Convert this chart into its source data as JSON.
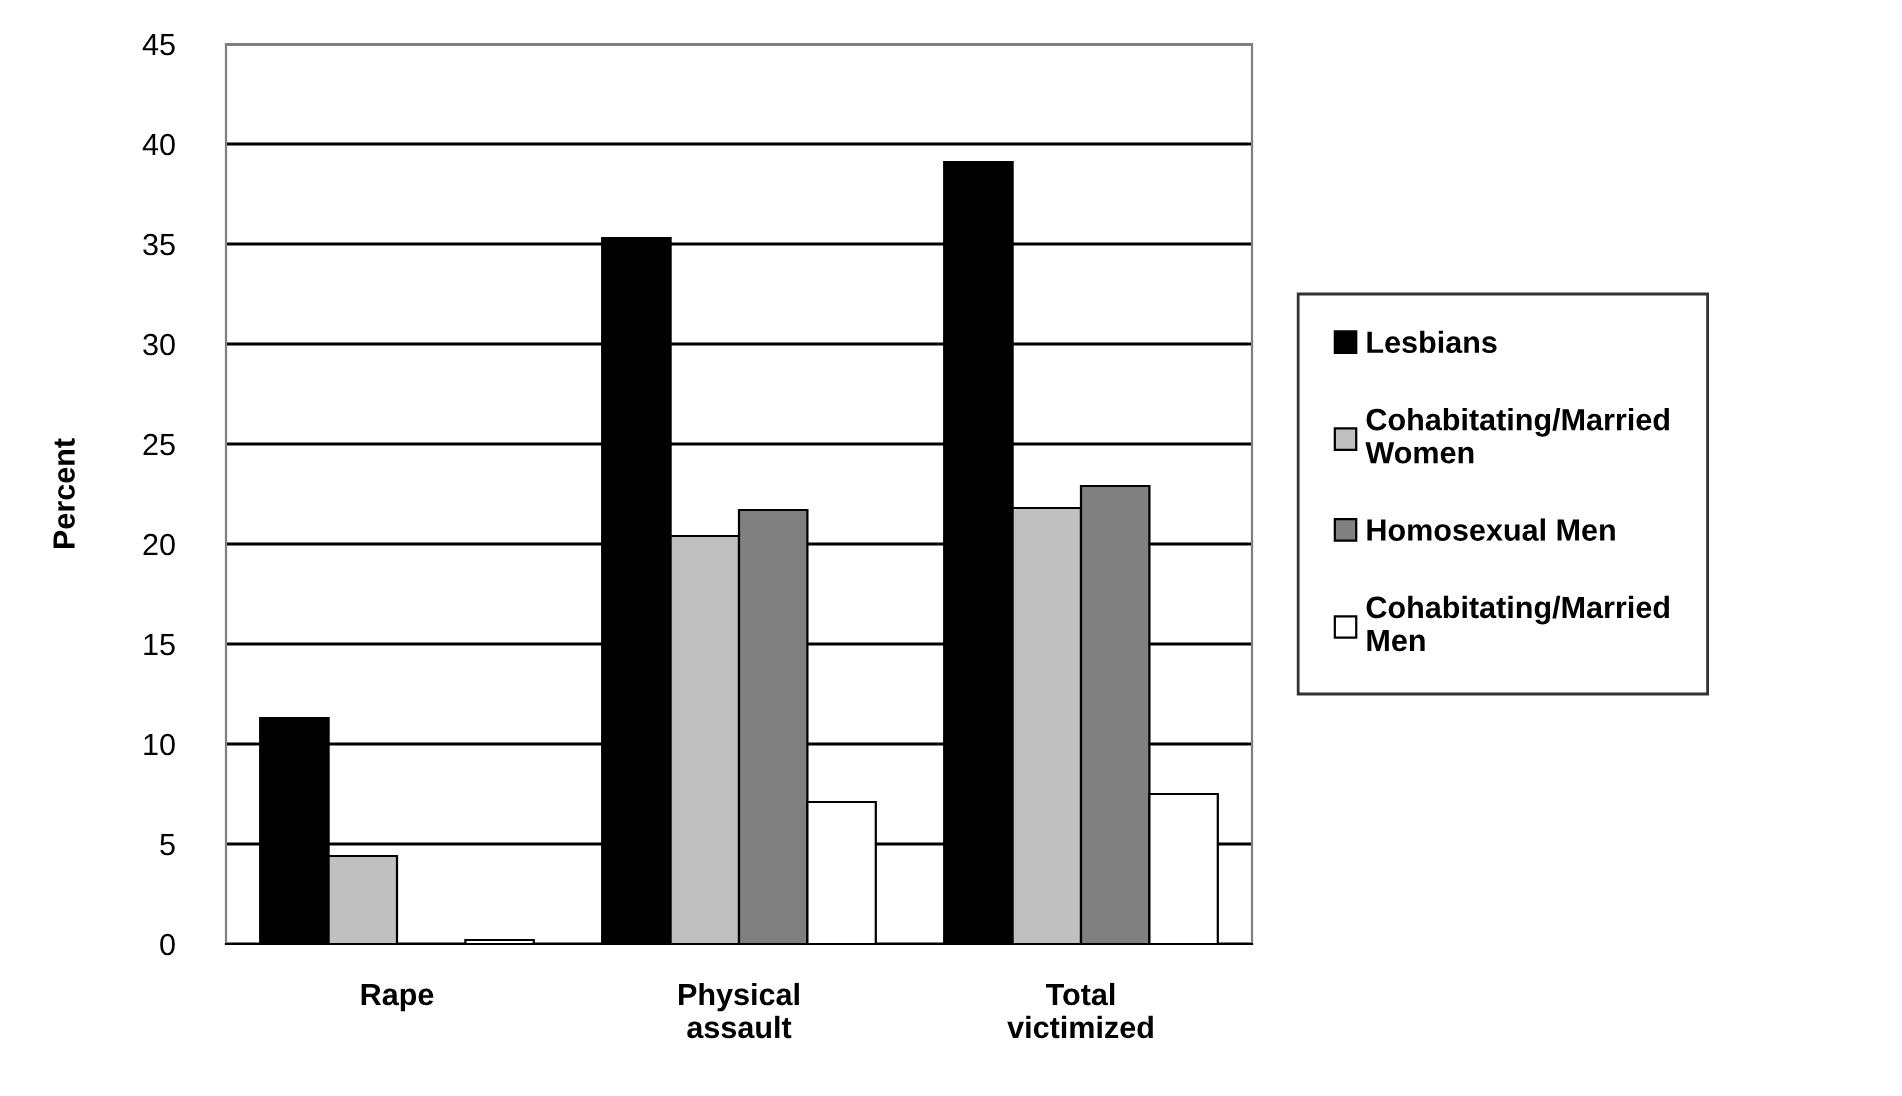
{
  "chart_data": {
    "type": "bar",
    "ylabel": "Percent",
    "categories": [
      "Rape",
      "Physical\nassault",
      "Total\nvictimized"
    ],
    "series": [
      {
        "name": "Lesbians",
        "color": "#000000",
        "values": [
          11.3,
          35.3,
          39.1
        ]
      },
      {
        "name": "Cohabitating/Married\nWomen",
        "color": "#c0c0c0",
        "values": [
          4.4,
          20.4,
          21.8
        ]
      },
      {
        "name": "Homosexual Men",
        "color": "#808080",
        "values": [
          null,
          21.7,
          22.9
        ]
      },
      {
        "name": "Cohabitating/Married\nMen",
        "color": "#ffffff",
        "values": [
          0.2,
          7.1,
          7.5
        ]
      }
    ],
    "ylim": [
      0,
      45
    ],
    "yticks": [
      0,
      5,
      10,
      15,
      20,
      25,
      30,
      35,
      40,
      45
    ],
    "grid": "y",
    "legend": "right"
  }
}
